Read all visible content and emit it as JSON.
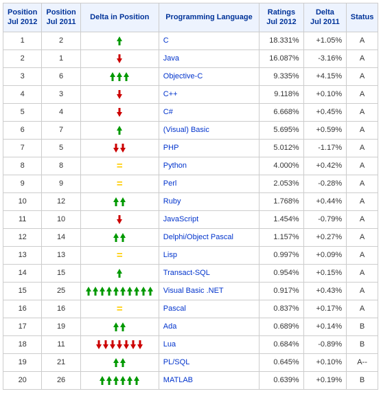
{
  "colors": {
    "header_bg": "#edf3fe",
    "header_text": "#003399",
    "border": "#cccccc",
    "link": "#0033cc",
    "text": "#333333",
    "up": "#009900",
    "down": "#cc0000",
    "equal": "#ffcc00"
  },
  "headers": {
    "pos2012": "Position\nJul 2012",
    "pos2011": "Position\nJul 2011",
    "delta_pos": "Delta in Position",
    "language": "Programming Language",
    "ratings": "Ratings\nJul 2012",
    "delta_rat": "Delta\nJul 2011",
    "status": "Status"
  },
  "rows": [
    {
      "p12": "1",
      "p11": "2",
      "dir": "up",
      "count": 1,
      "lang": "C",
      "rat": "18.331%",
      "drat": "+1.05%",
      "status": "A"
    },
    {
      "p12": "2",
      "p11": "1",
      "dir": "down",
      "count": 1,
      "lang": "Java",
      "rat": "16.087%",
      "drat": "-3.16%",
      "status": "A"
    },
    {
      "p12": "3",
      "p11": "6",
      "dir": "up",
      "count": 3,
      "lang": "Objective-C",
      "rat": "9.335%",
      "drat": "+4.15%",
      "status": "A"
    },
    {
      "p12": "4",
      "p11": "3",
      "dir": "down",
      "count": 1,
      "lang": "C++",
      "rat": "9.118%",
      "drat": "+0.10%",
      "status": "A"
    },
    {
      "p12": "5",
      "p11": "4",
      "dir": "down",
      "count": 1,
      "lang": "C#",
      "rat": "6.668%",
      "drat": "+0.45%",
      "status": "A"
    },
    {
      "p12": "6",
      "p11": "7",
      "dir": "up",
      "count": 1,
      "lang": "(Visual) Basic",
      "rat": "5.695%",
      "drat": "+0.59%",
      "status": "A"
    },
    {
      "p12": "7",
      "p11": "5",
      "dir": "down",
      "count": 2,
      "lang": "PHP",
      "rat": "5.012%",
      "drat": "-1.17%",
      "status": "A"
    },
    {
      "p12": "8",
      "p11": "8",
      "dir": "equal",
      "count": 1,
      "lang": "Python",
      "rat": "4.000%",
      "drat": "+0.42%",
      "status": "A"
    },
    {
      "p12": "9",
      "p11": "9",
      "dir": "equal",
      "count": 1,
      "lang": "Perl",
      "rat": "2.053%",
      "drat": "-0.28%",
      "status": "A"
    },
    {
      "p12": "10",
      "p11": "12",
      "dir": "up",
      "count": 2,
      "lang": "Ruby",
      "rat": "1.768%",
      "drat": "+0.44%",
      "status": "A"
    },
    {
      "p12": "11",
      "p11": "10",
      "dir": "down",
      "count": 1,
      "lang": "JavaScript",
      "rat": "1.454%",
      "drat": "-0.79%",
      "status": "A"
    },
    {
      "p12": "12",
      "p11": "14",
      "dir": "up",
      "count": 2,
      "lang": "Delphi/Object Pascal",
      "rat": "1.157%",
      "drat": "+0.27%",
      "status": "A"
    },
    {
      "p12": "13",
      "p11": "13",
      "dir": "equal",
      "count": 1,
      "lang": "Lisp",
      "rat": "0.997%",
      "drat": "+0.09%",
      "status": "A"
    },
    {
      "p12": "14",
      "p11": "15",
      "dir": "up",
      "count": 1,
      "lang": "Transact-SQL",
      "rat": "0.954%",
      "drat": "+0.15%",
      "status": "A"
    },
    {
      "p12": "15",
      "p11": "25",
      "dir": "up",
      "count": 10,
      "lang": "Visual Basic .NET",
      "rat": "0.917%",
      "drat": "+0.43%",
      "status": "A"
    },
    {
      "p12": "16",
      "p11": "16",
      "dir": "equal",
      "count": 1,
      "lang": "Pascal",
      "rat": "0.837%",
      "drat": "+0.17%",
      "status": "A"
    },
    {
      "p12": "17",
      "p11": "19",
      "dir": "up",
      "count": 2,
      "lang": "Ada",
      "rat": "0.689%",
      "drat": "+0.14%",
      "status": "B"
    },
    {
      "p12": "18",
      "p11": "11",
      "dir": "down",
      "count": 7,
      "lang": "Lua",
      "rat": "0.684%",
      "drat": "-0.89%",
      "status": "B"
    },
    {
      "p12": "19",
      "p11": "21",
      "dir": "up",
      "count": 2,
      "lang": "PL/SQL",
      "rat": "0.645%",
      "drat": "+0.10%",
      "status": "A--"
    },
    {
      "p12": "20",
      "p11": "26",
      "dir": "up",
      "count": 6,
      "lang": "MATLAB",
      "rat": "0.639%",
      "drat": "+0.19%",
      "status": "B"
    }
  ]
}
